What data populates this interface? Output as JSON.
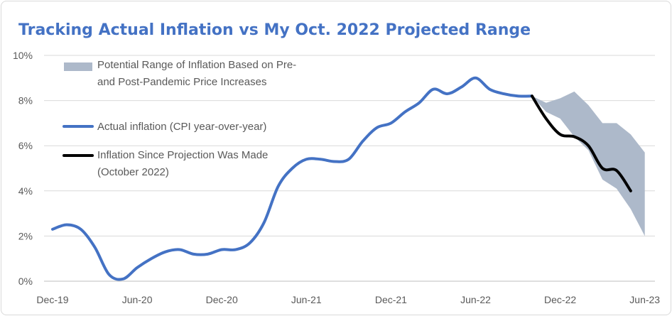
{
  "chart_data": {
    "type": "line",
    "title": "Tracking Actual Inflation vs My Oct. 2022 Projected Range",
    "xlabel": "",
    "ylabel": "",
    "ylim": [
      0,
      10
    ],
    "yticks": [
      "0%",
      "2%",
      "4%",
      "6%",
      "8%",
      "10%"
    ],
    "x_tick_labels": [
      "Dec-19",
      "Jun-20",
      "Dec-20",
      "Jun-21",
      "Dec-21",
      "Jun-22",
      "Dec-22",
      "Jun-23"
    ],
    "grid": true,
    "legend_position": "top-left",
    "colors": {
      "actual": "#4472c4",
      "since_projection": "#000000",
      "range": "#adb9ca",
      "title": "#4472c4"
    },
    "x": [
      "2019-12",
      "2020-01",
      "2020-02",
      "2020-03",
      "2020-04",
      "2020-05",
      "2020-06",
      "2020-07",
      "2020-08",
      "2020-09",
      "2020-10",
      "2020-11",
      "2020-12",
      "2021-01",
      "2021-02",
      "2021-03",
      "2021-04",
      "2021-05",
      "2021-06",
      "2021-07",
      "2021-08",
      "2021-09",
      "2021-10",
      "2021-11",
      "2021-12",
      "2022-01",
      "2022-02",
      "2022-03",
      "2022-04",
      "2022-05",
      "2022-06",
      "2022-07",
      "2022-08",
      "2022-09",
      "2022-10",
      "2022-11",
      "2022-12",
      "2023-01",
      "2023-02",
      "2023-03",
      "2023-04",
      "2023-05",
      "2023-06"
    ],
    "series": [
      {
        "name": "Actual inflation (CPI year-over-year)",
        "x": [
          "2019-12",
          "2020-01",
          "2020-02",
          "2020-03",
          "2020-04",
          "2020-05",
          "2020-06",
          "2020-07",
          "2020-08",
          "2020-09",
          "2020-10",
          "2020-11",
          "2020-12",
          "2021-01",
          "2021-02",
          "2021-03",
          "2021-04",
          "2021-05",
          "2021-06",
          "2021-07",
          "2021-08",
          "2021-09",
          "2021-10",
          "2021-11",
          "2021-12",
          "2022-01",
          "2022-02",
          "2022-03",
          "2022-04",
          "2022-05",
          "2022-06",
          "2022-07",
          "2022-08",
          "2022-09",
          "2022-10"
        ],
        "values": [
          2.3,
          2.5,
          2.3,
          1.5,
          0.3,
          0.1,
          0.6,
          1.0,
          1.3,
          1.4,
          1.2,
          1.2,
          1.4,
          1.4,
          1.7,
          2.6,
          4.2,
          5.0,
          5.4,
          5.4,
          5.3,
          5.4,
          6.2,
          6.8,
          7.0,
          7.5,
          7.9,
          8.5,
          8.3,
          8.6,
          9.0,
          8.5,
          8.3,
          8.2,
          8.2
        ]
      },
      {
        "name": "Inflation Since Projection Was Made (October 2022)",
        "x": [
          "2022-10",
          "2022-11",
          "2022-12",
          "2023-01",
          "2023-02",
          "2023-03",
          "2023-04",
          "2023-05"
        ],
        "values": [
          8.2,
          7.2,
          6.5,
          6.4,
          6.0,
          5.0,
          4.9,
          4.0
        ]
      },
      {
        "name": "Potential Range of Inflation Based on Pre- and Post-Pandemic Price Increases",
        "type": "range",
        "x": [
          "2022-10",
          "2022-11",
          "2022-12",
          "2023-01",
          "2023-02",
          "2023-03",
          "2023-04",
          "2023-05",
          "2023-06"
        ],
        "low": [
          8.2,
          7.5,
          7.2,
          6.4,
          5.8,
          4.5,
          4.1,
          3.2,
          2.0
        ],
        "high": [
          8.2,
          7.9,
          8.1,
          8.4,
          7.8,
          7.0,
          7.0,
          6.5,
          5.7
        ]
      }
    ],
    "legend": [
      {
        "label_lines": [
          "Potential Range of Inflation Based on Pre-",
          "and Post-Pandemic Price Increases"
        ],
        "kind": "band"
      },
      {
        "label_lines": [
          "Actual inflation (CPI year-over-year)"
        ],
        "kind": "actual"
      },
      {
        "label_lines": [
          "Inflation Since Projection Was Made",
          "(October 2022)"
        ],
        "kind": "since"
      }
    ]
  }
}
